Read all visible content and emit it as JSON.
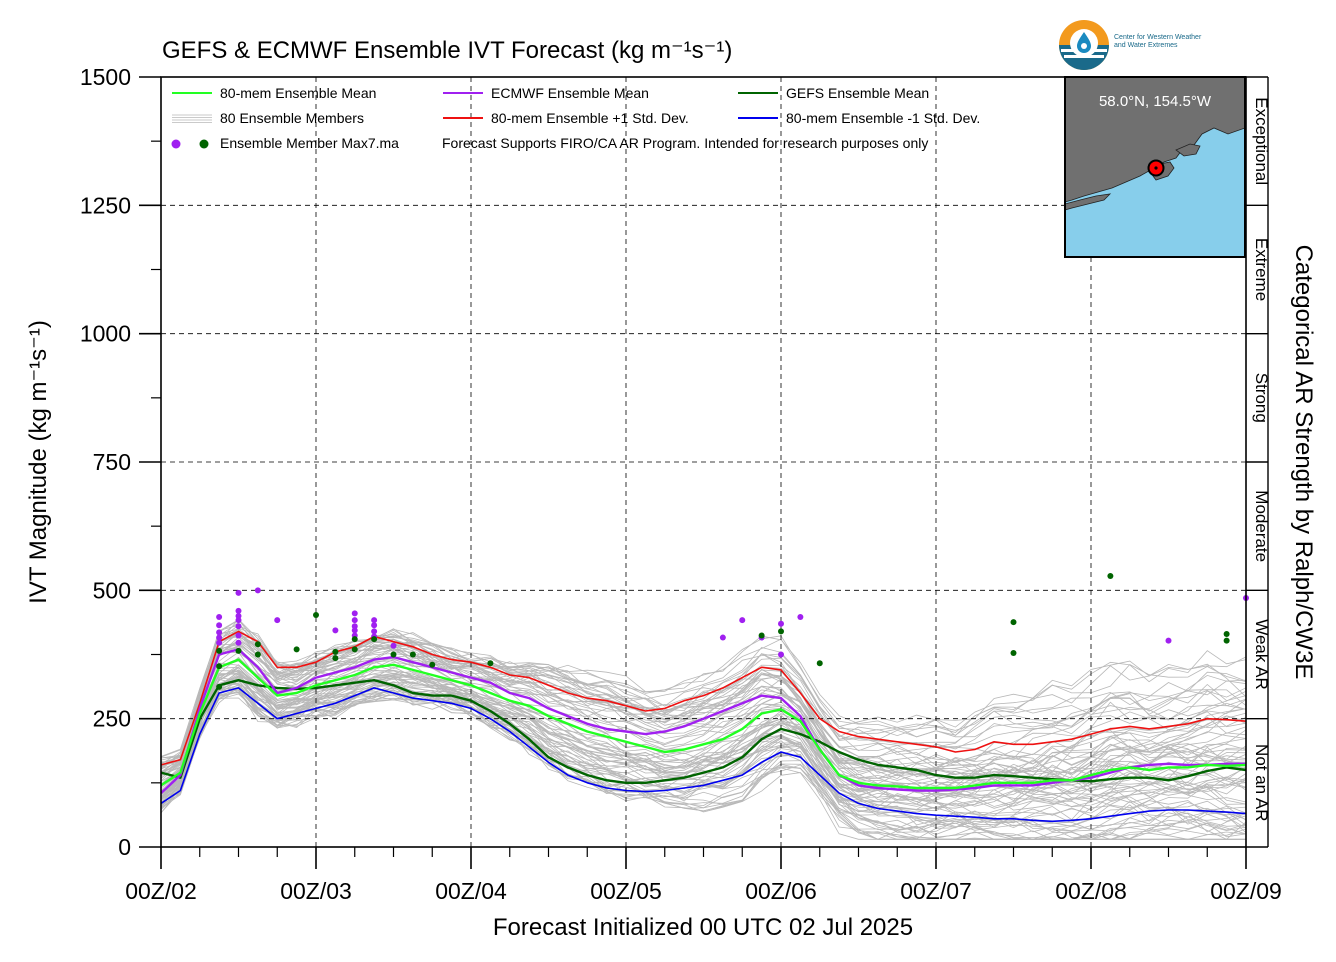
{
  "logo": {
    "line1": "Center for Western Weather",
    "line2": "and Water Extremes"
  },
  "colors": {
    "mean80": "#22ff22",
    "ecmwf": "#a020f0",
    "gefs": "#006400",
    "plus1": "#ee1111",
    "minus1": "#0000ee",
    "members": "#b8b8b8",
    "inset_land": "#707070",
    "inset_water": "#87ceeb"
  },
  "chart_data": {
    "type": "line",
    "title": "GEFS & ECMWF Ensemble IVT Forecast (kg m⁻¹s⁻¹)",
    "xlabel": "Forecast Initialized 00 UTC 02 Jul 2025",
    "ylabel": "IVT Magnitude (kg m⁻¹s⁻¹)",
    "right_label": "Categorical AR Strength by Ralph/CW3E",
    "ylim": [
      0,
      1500
    ],
    "yticks": [
      0,
      250,
      500,
      750,
      1000,
      1250,
      1500
    ],
    "xlim": [
      0,
      168
    ],
    "xticks": [
      {
        "t": 0,
        "label": "00Z/02"
      },
      {
        "t": 24,
        "label": "00Z/03"
      },
      {
        "t": 48,
        "label": "00Z/04"
      },
      {
        "t": 72,
        "label": "00Z/05"
      },
      {
        "t": 96,
        "label": "00Z/06"
      },
      {
        "t": 120,
        "label": "00Z/07"
      },
      {
        "t": 144,
        "label": "00Z/08"
      },
      {
        "t": 168,
        "label": "00Z/09"
      }
    ],
    "grid": true,
    "legend": {
      "position": "top-left",
      "items": [
        {
          "label": "80-mem Ensemble Mean",
          "series": "mean80"
        },
        {
          "label": "ECMWF Ensemble Mean",
          "series": "ecmwf"
        },
        {
          "label": "GEFS Ensemble Mean",
          "series": "gefs"
        },
        {
          "label": "80 Ensemble Members",
          "series": "members"
        },
        {
          "label": "80-mem Ensemble +1 Std. Dev.",
          "series": "plus1"
        },
        {
          "label": "80-mem Ensemble -1 Std. Dev.",
          "series": "minus1"
        },
        {
          "label": "Ensemble Member Max7.ma",
          "series": "max"
        }
      ],
      "note": "Forecast Supports FIRO/CA AR Program. Intended for research purposes only"
    },
    "categories": [
      {
        "label": "Exceptional",
        "from": 1250,
        "to": 1500
      },
      {
        "label": "Extreme",
        "from": 1000,
        "to": 1250
      },
      {
        "label": "Strong",
        "from": 750,
        "to": 1000
      },
      {
        "label": "Moderate",
        "from": 500,
        "to": 750
      },
      {
        "label": "Weak AR",
        "from": 250,
        "to": 500
      },
      {
        "label": "Not an AR",
        "from": 0,
        "to": 250
      }
    ],
    "x": [
      0,
      3,
      6,
      9,
      12,
      15,
      18,
      21,
      24,
      27,
      30,
      33,
      36,
      39,
      42,
      45,
      48,
      51,
      54,
      57,
      60,
      63,
      66,
      69,
      72,
      75,
      78,
      81,
      84,
      87,
      90,
      93,
      96,
      99,
      102,
      105,
      108,
      111,
      114,
      117,
      120,
      123,
      126,
      129,
      132,
      135,
      138,
      141,
      144,
      147,
      150,
      153,
      156,
      159,
      162,
      165,
      168
    ],
    "series": [
      {
        "key": "plus1",
        "name": "80-mem Ensemble +1 Std. Dev.",
        "values": [
          160,
          170,
          280,
          400,
          420,
          400,
          350,
          350,
          360,
          380,
          390,
          410,
          400,
          390,
          375,
          365,
          360,
          350,
          335,
          330,
          315,
          300,
          290,
          285,
          275,
          265,
          270,
          285,
          295,
          310,
          330,
          350,
          345,
          300,
          250,
          225,
          215,
          210,
          205,
          200,
          195,
          185,
          190,
          205,
          200,
          200,
          205,
          210,
          220,
          230,
          235,
          230,
          235,
          240,
          250,
          248,
          245
        ]
      },
      {
        "key": "mean80",
        "name": "80-mem Ensemble Mean",
        "values": [
          120,
          145,
          260,
          350,
          365,
          330,
          295,
          300,
          315,
          325,
          335,
          350,
          355,
          345,
          335,
          325,
          315,
          300,
          285,
          275,
          255,
          240,
          225,
          215,
          205,
          195,
          185,
          190,
          200,
          210,
          230,
          260,
          268,
          245,
          190,
          140,
          125,
          120,
          118,
          115,
          115,
          115,
          120,
          125,
          125,
          125,
          130,
          130,
          140,
          150,
          155,
          150,
          155,
          155,
          160,
          158,
          160
        ]
      },
      {
        "key": "ecmwf",
        "name": "ECMWF Ensemble Mean",
        "values": [
          105,
          140,
          270,
          375,
          385,
          350,
          300,
          310,
          330,
          340,
          350,
          365,
          370,
          360,
          350,
          340,
          330,
          320,
          300,
          290,
          270,
          255,
          240,
          230,
          225,
          220,
          225,
          235,
          250,
          265,
          280,
          295,
          290,
          255,
          190,
          140,
          120,
          115,
          112,
          110,
          110,
          112,
          115,
          120,
          120,
          120,
          125,
          130,
          135,
          145,
          155,
          160,
          162,
          160,
          160,
          162,
          162
        ]
      },
      {
        "key": "gefs",
        "name": "GEFS Ensemble Mean",
        "values": [
          145,
          135,
          250,
          315,
          325,
          315,
          310,
          308,
          310,
          315,
          320,
          325,
          315,
          300,
          295,
          295,
          285,
          265,
          240,
          210,
          175,
          155,
          140,
          130,
          125,
          125,
          130,
          135,
          145,
          155,
          175,
          210,
          230,
          220,
          205,
          185,
          170,
          160,
          155,
          150,
          140,
          135,
          135,
          140,
          138,
          135,
          132,
          130,
          128,
          132,
          135,
          135,
          130,
          138,
          148,
          155,
          150
        ]
      },
      {
        "key": "minus1",
        "name": "80-mem Ensemble -1 Std. Dev.",
        "values": [
          85,
          110,
          220,
          300,
          310,
          280,
          250,
          260,
          270,
          280,
          295,
          310,
          300,
          290,
          285,
          280,
          270,
          250,
          225,
          195,
          165,
          140,
          125,
          115,
          110,
          108,
          110,
          115,
          120,
          130,
          140,
          165,
          185,
          175,
          140,
          105,
          85,
          75,
          70,
          65,
          62,
          60,
          58,
          55,
          55,
          52,
          50,
          52,
          55,
          60,
          65,
          70,
          72,
          72,
          70,
          68,
          65
        ]
      }
    ],
    "max_points": {
      "ecmwf": [
        {
          "x": 9,
          "y": 448
        },
        {
          "x": 9,
          "y": 432
        },
        {
          "x": 9,
          "y": 418
        },
        {
          "x": 9,
          "y": 408
        },
        {
          "x": 9,
          "y": 398
        },
        {
          "x": 12,
          "y": 495
        },
        {
          "x": 12,
          "y": 460
        },
        {
          "x": 12,
          "y": 450
        },
        {
          "x": 12,
          "y": 442
        },
        {
          "x": 12,
          "y": 430
        },
        {
          "x": 12,
          "y": 412
        },
        {
          "x": 12,
          "y": 398
        },
        {
          "x": 15,
          "y": 500
        },
        {
          "x": 18,
          "y": 442
        },
        {
          "x": 27,
          "y": 422
        },
        {
          "x": 30,
          "y": 455
        },
        {
          "x": 30,
          "y": 442
        },
        {
          "x": 30,
          "y": 430
        },
        {
          "x": 30,
          "y": 422
        },
        {
          "x": 30,
          "y": 412
        },
        {
          "x": 33,
          "y": 442
        },
        {
          "x": 33,
          "y": 432
        },
        {
          "x": 33,
          "y": 420
        },
        {
          "x": 33,
          "y": 410
        },
        {
          "x": 36,
          "y": 392
        },
        {
          "x": 87,
          "y": 408
        },
        {
          "x": 90,
          "y": 442
        },
        {
          "x": 93,
          "y": 408
        },
        {
          "x": 96,
          "y": 435
        },
        {
          "x": 96,
          "y": 375
        },
        {
          "x": 99,
          "y": 448
        },
        {
          "x": 156,
          "y": 402
        },
        {
          "x": 168,
          "y": 485
        }
      ],
      "gefs": [
        {
          "x": 9,
          "y": 382
        },
        {
          "x": 9,
          "y": 352
        },
        {
          "x": 9,
          "y": 312
        },
        {
          "x": 12,
          "y": 382
        },
        {
          "x": 15,
          "y": 395
        },
        {
          "x": 15,
          "y": 375
        },
        {
          "x": 21,
          "y": 385
        },
        {
          "x": 24,
          "y": 452
        },
        {
          "x": 27,
          "y": 380
        },
        {
          "x": 27,
          "y": 368
        },
        {
          "x": 30,
          "y": 405
        },
        {
          "x": 30,
          "y": 385
        },
        {
          "x": 33,
          "y": 405
        },
        {
          "x": 36,
          "y": 375
        },
        {
          "x": 39,
          "y": 375
        },
        {
          "x": 42,
          "y": 355
        },
        {
          "x": 51,
          "y": 358
        },
        {
          "x": 93,
          "y": 412
        },
        {
          "x": 96,
          "y": 420
        },
        {
          "x": 102,
          "y": 358
        },
        {
          "x": 132,
          "y": 438
        },
        {
          "x": 132,
          "y": 378
        },
        {
          "x": 147,
          "y": 528
        },
        {
          "x": 165,
          "y": 415
        },
        {
          "x": 165,
          "y": 402
        }
      ]
    },
    "members_count": 80
  },
  "inset_map": {
    "label": "58.0°N, 154.5°W",
    "lat": 58.0,
    "lon": -154.5
  }
}
